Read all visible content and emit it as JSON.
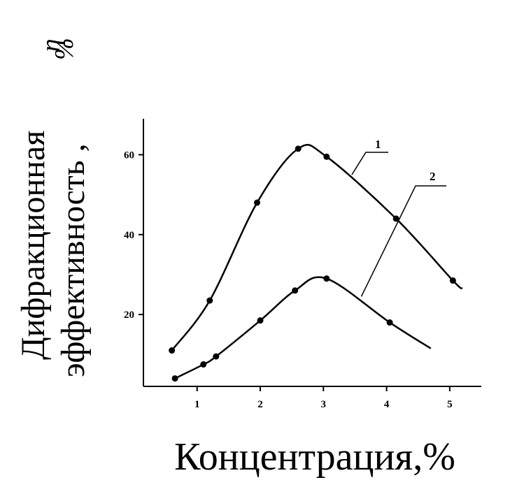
{
  "chart_data": {
    "type": "line",
    "title": "",
    "xlabel": "Концентрация,%",
    "ylabel_line1": "Дифракционная",
    "ylabel_line2": "эффективность ,",
    "ylabel_unit": "%",
    "ylabel_symbol": "η",
    "xlim": [
      0.15,
      5.5
    ],
    "ylim": [
      2,
      69
    ],
    "xticks": [
      1,
      2,
      3,
      4,
      5
    ],
    "yticks": [
      20,
      40,
      60
    ],
    "grid": false,
    "series": [
      {
        "name": "1",
        "points": [
          [
            0.6,
            11
          ],
          [
            1.2,
            23.5
          ],
          [
            1.95,
            48
          ],
          [
            2.6,
            61.5
          ],
          [
            3.05,
            59.5
          ],
          [
            4.15,
            44
          ],
          [
            5.05,
            28.5
          ]
        ],
        "curve_end": [
          5.2,
          26.5
        ]
      },
      {
        "name": "2",
        "points": [
          [
            0.65,
            4
          ],
          [
            1.1,
            7.5
          ],
          [
            1.3,
            9.5
          ],
          [
            2.0,
            18.5
          ],
          [
            2.55,
            26
          ],
          [
            3.05,
            29
          ],
          [
            4.05,
            18
          ]
        ],
        "curve_end": [
          4.7,
          11.5
        ]
      }
    ]
  }
}
